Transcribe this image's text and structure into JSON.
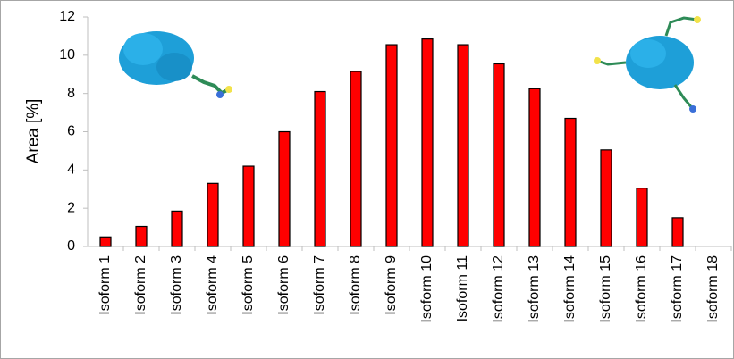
{
  "chart_data": {
    "type": "bar",
    "y_label": "Area [%]",
    "categories": [
      "Isoform 1",
      "Isoform 2",
      "Isoform 3",
      "Isoform 4",
      "Isoform 5",
      "Isoform 6",
      "Isoform 7",
      "Isoform 8",
      "Isoform 9",
      "Isoform 10",
      "Isoform 11",
      "Isoform 12",
      "Isoform 13",
      "Isoform 14",
      "Isoform 15",
      "Isoform 16",
      "Isoform 17",
      "Isoform 18"
    ],
    "values": [
      0.5,
      1.05,
      1.85,
      3.3,
      4.2,
      6.0,
      8.1,
      9.15,
      10.55,
      10.85,
      10.55,
      9.55,
      8.25,
      6.7,
      5.05,
      3.05,
      1.5,
      0
    ],
    "color": "#ff0000",
    "ylim": [
      0,
      12
    ],
    "yticks": [
      0,
      2,
      4,
      6,
      8,
      10,
      12
    ],
    "grid": false
  }
}
